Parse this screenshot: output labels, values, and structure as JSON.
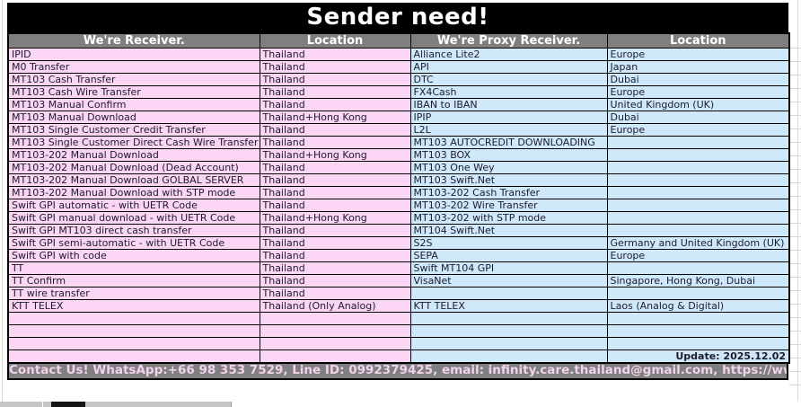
{
  "title": "Sender need!",
  "columns": [
    "We're Receiver.",
    "Location",
    "We're Proxy Receiver.",
    "Location"
  ],
  "table": {
    "rows": [
      {
        "receiver": "IPID",
        "receiver_location": "Thailand",
        "proxy": "Alliance Lite2",
        "proxy_location": "Europe"
      },
      {
        "receiver": "M0 Transfer",
        "receiver_location": "Thailand",
        "proxy": "API",
        "proxy_location": "Japan"
      },
      {
        "receiver": "MT103 Cash Transfer",
        "receiver_location": "Thailand",
        "proxy": "DTC",
        "proxy_location": "Dubai"
      },
      {
        "receiver": "MT103 Cash Wire Transfer",
        "receiver_location": "Thailand",
        "proxy": "FX4Cash",
        "proxy_location": "Europe"
      },
      {
        "receiver": "MT103 Manual Confirm",
        "receiver_location": "Thailand",
        "proxy": "IBAN to IBAN",
        "proxy_location": "United Kingdom (UK)"
      },
      {
        "receiver": "MT103 Manual Download",
        "receiver_location": "Thailand+Hong Kong",
        "proxy": "IPIP",
        "proxy_location": "Dubai"
      },
      {
        "receiver": "MT103 Single Customer Credit Transfer",
        "receiver_location": "Thailand",
        "proxy": "L2L",
        "proxy_location": "Europe"
      },
      {
        "receiver": "MT103 Single Customer Direct Cash Wire Transfer",
        "receiver_location": "Thailand",
        "proxy": "MT103 AUTOCREDIT DOWNLOADING",
        "proxy_location": ""
      },
      {
        "receiver": "MT103-202 Manual Download",
        "receiver_location": "Thailand+Hong Kong",
        "proxy": "MT103 BOX",
        "proxy_location": ""
      },
      {
        "receiver": "MT103-202 Manual Download (Dead Account)",
        "receiver_location": "Thailand",
        "proxy": "MT103 One Wey",
        "proxy_location": ""
      },
      {
        "receiver": "MT103-202 Manual Download GOLBAL SERVER",
        "receiver_location": "Thailand",
        "proxy": "MT103 Swift.Net",
        "proxy_location": ""
      },
      {
        "receiver": "MT103-202 Manual Download with STP mode",
        "receiver_location": "Thailand",
        "proxy": "MT103-202 Cash Transfer",
        "proxy_location": ""
      },
      {
        "receiver": "Swift GPI automatic - with UETR Code",
        "receiver_location": "Thailand",
        "proxy": "MT103-202 Wire Transfer",
        "proxy_location": ""
      },
      {
        "receiver": "Swift GPI manual download - with UETR Code",
        "receiver_location": "Thailand+Hong Kong",
        "proxy": "MT103-202 with STP mode",
        "proxy_location": ""
      },
      {
        "receiver": "Swift GPI MT103 direct cash transfer",
        "receiver_location": "Thailand",
        "proxy": "MT104 Swift.Net",
        "proxy_location": ""
      },
      {
        "receiver": "Swift GPI semi-automatic - with UETR Code",
        "receiver_location": "Thailand",
        "proxy": "S2S",
        "proxy_location": "Germany and United Kingdom (UK)"
      },
      {
        "receiver": "Swift GPI with code",
        "receiver_location": "Thailand",
        "proxy": "SEPA",
        "proxy_location": "Europe"
      },
      {
        "receiver": "TT",
        "receiver_location": "Thailand",
        "proxy": "Swift MT104 GPI",
        "proxy_location": ""
      },
      {
        "receiver": "TT Confirm",
        "receiver_location": "Thailand",
        "proxy": "VisaNet",
        "proxy_location": "Singapore, Hong Kong, Dubai"
      },
      {
        "receiver": "TT wire transfer",
        "receiver_location": "Thailand",
        "proxy": "",
        "proxy_location": ""
      },
      {
        "receiver": "KTT TELEX",
        "receiver_location": "Thailand (Only Analog)",
        "proxy": "KTT TELEX",
        "proxy_location": "Laos (Analog & Digital)"
      },
      {
        "receiver": "",
        "receiver_location": "",
        "proxy": "",
        "proxy_location": ""
      },
      {
        "receiver": "",
        "receiver_location": "",
        "proxy": "",
        "proxy_location": ""
      },
      {
        "receiver": "",
        "receiver_location": "",
        "proxy": "",
        "proxy_location": ""
      },
      {
        "receiver": "",
        "receiver_location": "",
        "proxy": "",
        "proxy_location": "Update: 2025.12.02",
        "is_update_note": true
      }
    ]
  },
  "contact_bar": "Contact Us! WhatsApp:+66 98 353 7529, Line ID: 0992379425, email: infinity.care.thailand@gmail.com,  https://www.thailifeplc.com",
  "colors": {
    "receiver_bg": "#fbd5f4",
    "proxy_bg": "#cfe9fb",
    "header_bg": "#7f7f7f",
    "title_bg": "#000000",
    "title_text": "#ffffff",
    "contact_text": "#f3d2ec"
  }
}
